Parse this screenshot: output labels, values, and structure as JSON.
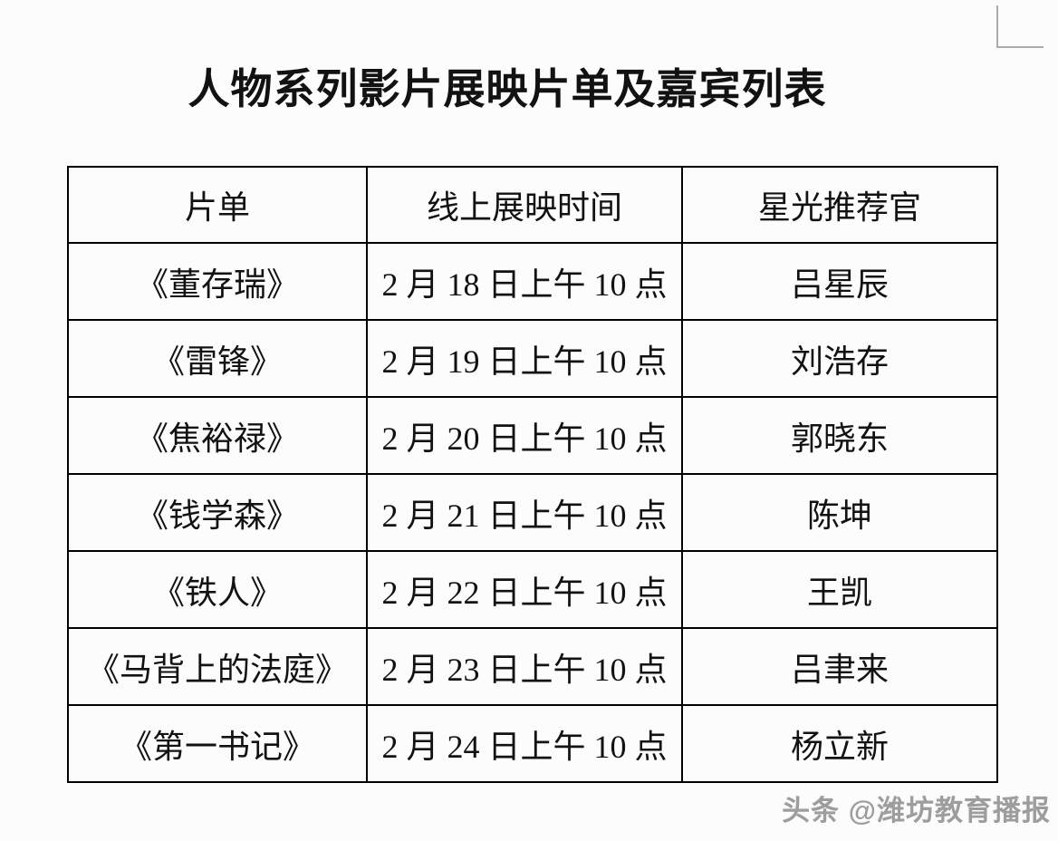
{
  "page": {
    "title": "人物系列影片展映片单及嘉宾列表",
    "watermark": "头条 @潍坊教育播报"
  },
  "table": {
    "headers": [
      "片单",
      "线上展映时间",
      "星光推荐官"
    ],
    "rows": [
      {
        "film": "《董存瑞》",
        "time": "2 月 18 日上午 10 点",
        "guest": "吕星辰"
      },
      {
        "film": "《雷锋》",
        "time": "2 月 19 日上午 10 点",
        "guest": "刘浩存"
      },
      {
        "film": "《焦裕禄》",
        "time": "2 月 20 日上午 10 点",
        "guest": "郭晓东"
      },
      {
        "film": "《钱学森》",
        "time": "2 月 21 日上午 10 点",
        "guest": "陈坤"
      },
      {
        "film": "《铁人》",
        "time": "2 月 22 日上午 10 点",
        "guest": "王凯"
      },
      {
        "film": "《马背上的法庭》",
        "time": "2 月 23 日上午 10 点",
        "guest": "吕聿来"
      },
      {
        "film": "《第一书记》",
        "time": "2 月 24 日上午 10 点",
        "guest": "杨立新"
      }
    ]
  },
  "colors": {
    "background": "#fcfcfc",
    "text": "#121212",
    "border": "#000000",
    "watermark": "#9d9d9d",
    "corner_mark": "#ababab"
  }
}
